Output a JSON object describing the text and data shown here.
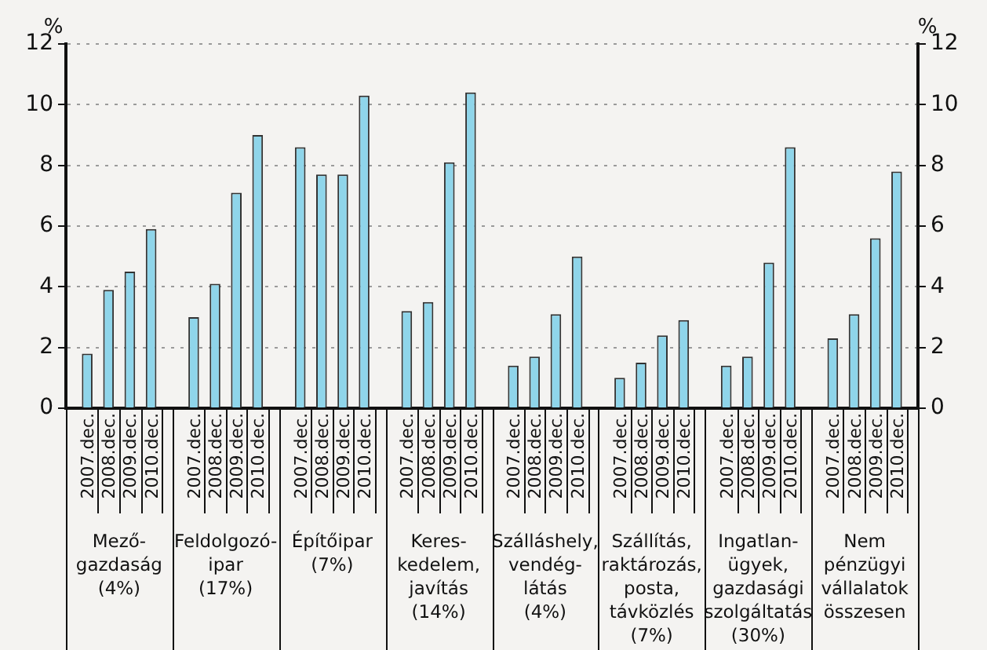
{
  "chart_data": {
    "type": "bar",
    "ylabel": "%",
    "y2label": "%",
    "categories": [
      "Mező-\ngazdaság\n(4%)",
      "Feldolgozó-\nipar\n(17%)",
      "Építőipar\n(7%)",
      "Keres-\nkedelem,\njavítás\n(14%)",
      "Szálláshely,\nvendég-\nlátás\n(4%)",
      "Szállítás,\nraktározás,\nposta,\ntávközlés\n(7%)",
      "Ingatlan-\nügyek,\ngazdasági\nszolgáltatás\n(30%)",
      "Nem\npénzügyi\nvállalatok\nösszesen"
    ],
    "series": [
      {
        "name": "2007.dec.",
        "color": "#8fd5ea",
        "values": [
          1.8,
          3.0,
          8.6,
          3.2,
          1.4,
          1.0,
          1.4,
          2.3
        ]
      },
      {
        "name": "2008.dec.",
        "color": "#8fd5ea",
        "values": [
          3.9,
          4.1,
          7.7,
          3.5,
          1.7,
          1.5,
          1.7,
          3.1
        ]
      },
      {
        "name": "2009.dec.",
        "color": "#8fd5ea",
        "values": [
          4.5,
          7.1,
          7.7,
          8.1,
          3.1,
          2.4,
          4.8,
          5.6
        ]
      },
      {
        "name": "2010.dec.",
        "color": "#8fd5ea",
        "values": [
          5.9,
          9.0,
          10.3,
          10.4,
          5.0,
          2.9,
          8.6,
          7.8
        ]
      }
    ],
    "ylim": [
      0,
      12
    ],
    "yticks": [
      0,
      2,
      4,
      6,
      8,
      10,
      12
    ],
    "y2lim": [
      0,
      12
    ],
    "y2ticks": [
      0,
      2,
      4,
      6,
      8,
      10,
      12
    ],
    "grid": "y"
  }
}
